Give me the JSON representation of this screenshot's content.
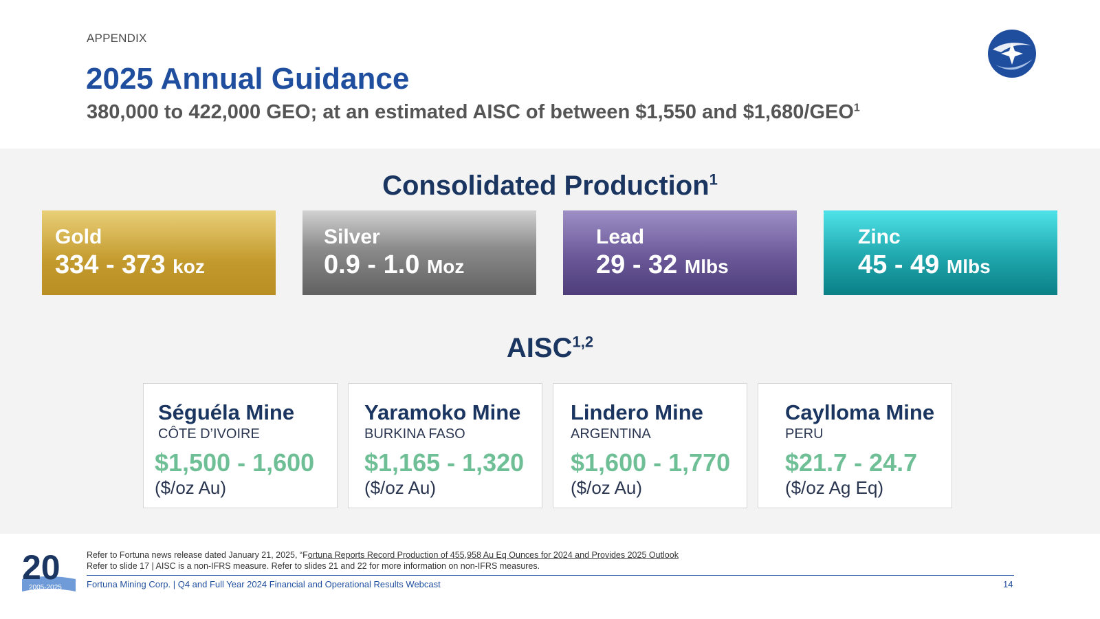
{
  "header": {
    "section_label": "APPENDIX",
    "title": "2025 Annual Guidance",
    "subtitle": "380,000 to 422,000 GEO; at an estimated AISC of between $1,550 and $1,680/GEO",
    "subtitle_sup": "1"
  },
  "production": {
    "heading": "Consolidated Production",
    "heading_sup": "1",
    "metals": [
      {
        "name": "Gold",
        "range": "334 - 373",
        "unit": "koz"
      },
      {
        "name": "Silver",
        "range": "0.9 - 1.0",
        "unit": "Moz"
      },
      {
        "name": "Lead",
        "range": "29 - 32",
        "unit": "Mlbs"
      },
      {
        "name": "Zinc",
        "range": "45 - 49",
        "unit": "Mlbs"
      }
    ]
  },
  "aisc": {
    "heading": "AISC",
    "heading_sup": "1,2",
    "mines": [
      {
        "name": "Séguéla Mine",
        "country": "CÔTE D’IVOIRE",
        "cost": "$1,500 - 1,600",
        "unit": "($/oz Au)"
      },
      {
        "name": "Yaramoko Mine",
        "country": "BURKINA FASO",
        "cost": "$1,165 - 1,320",
        "unit": "($/oz Au)"
      },
      {
        "name": "Lindero Mine",
        "country": "ARGENTINA",
        "cost": "$1,600 - 1,770",
        "unit": "($/oz Au)"
      },
      {
        "name": "Caylloma Mine",
        "country": "PERU",
        "cost": "$21.7 - 24.7",
        "unit": "($/oz Ag Eq)"
      }
    ]
  },
  "footnotes": {
    "note1_prefix": "Refer to Fortuna news release dated January 21, 2025, “F",
    "note1_link": "ortuna Reports Record Production of 455,958 Au Eq Ounces for 2024 and Provides 2025 Outlook",
    "note2": "Refer to slide 17 | AISC is a non-IFRS measure.  Refer to slides 21 and 22 for more information on non-IFRS measures."
  },
  "footer": {
    "left_text": "Fortuna Mining Corp. | Q4 and Full Year 2024 Financial and Operational Results Webcast",
    "page_number": "14",
    "anniversary_number": "20",
    "anniversary_years": "2005-2025"
  },
  "colors": {
    "title_blue": "#1f4e9e",
    "heading_navy": "#1b3561",
    "cost_green": "#6fbf96",
    "gold": "#c39a2d",
    "silver": "#8b8b8b",
    "lead": "#6a5898",
    "zinc": "#1fa7ad"
  }
}
